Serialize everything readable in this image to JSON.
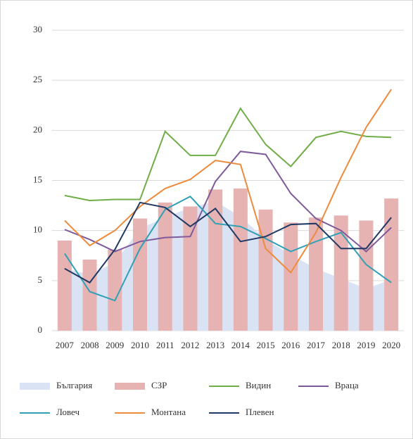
{
  "chart_data": {
    "type": "combo",
    "categories": [
      "2007",
      "2008",
      "2009",
      "2010",
      "2011",
      "2012",
      "2013",
      "2014",
      "2015",
      "2016",
      "2017",
      "2018",
      "2019",
      "2020"
    ],
    "ylim": [
      0,
      30
    ],
    "yticks": [
      0,
      5,
      10,
      15,
      20,
      25,
      30
    ],
    "grid": true,
    "legend": "bottom",
    "series": [
      {
        "name": "България",
        "type": "area",
        "color": "#dae3f3",
        "values": [
          6.2,
          5.6,
          6.8,
          10.2,
          11.3,
          12.3,
          12.9,
          11.4,
          9.1,
          7.6,
          6.2,
          5.2,
          4.2,
          5.1
        ]
      },
      {
        "name": "СЗР",
        "type": "bar",
        "color": "#e6b3b2",
        "values": [
          9.0,
          7.1,
          8.1,
          11.2,
          12.8,
          12.4,
          14.1,
          14.2,
          12.1,
          10.8,
          11.3,
          11.5,
          11.0,
          13.2
        ]
      },
      {
        "name": "Видин",
        "type": "line",
        "color": "#70ad47",
        "values": [
          13.5,
          13.0,
          13.1,
          13.1,
          19.9,
          17.5,
          17.5,
          22.2,
          18.6,
          16.4,
          19.3,
          19.9,
          19.4,
          19.3
        ]
      },
      {
        "name": "Враца",
        "type": "line",
        "color": "#7e5a9b",
        "values": [
          10.1,
          9.1,
          7.9,
          8.9,
          9.3,
          9.4,
          14.9,
          17.9,
          17.6,
          13.7,
          11.2,
          10.0,
          7.9,
          10.3
        ]
      },
      {
        "name": "Ловеч",
        "type": "line",
        "color": "#31a0b5",
        "values": [
          7.7,
          3.9,
          3.0,
          8.2,
          12.1,
          13.4,
          10.7,
          10.4,
          9.2,
          7.9,
          8.9,
          9.8,
          6.6,
          4.8
        ]
      },
      {
        "name": "Монтана",
        "type": "line",
        "color": "#ed8b3d",
        "values": [
          11.0,
          8.5,
          10.0,
          12.4,
          14.2,
          15.1,
          17.0,
          16.6,
          8.2,
          5.8,
          9.8,
          15.3,
          20.3,
          24.1
        ]
      },
      {
        "name": "Плевен",
        "type": "line",
        "color": "#1f3864",
        "values": [
          6.2,
          4.8,
          8.1,
          12.8,
          12.3,
          10.4,
          12.2,
          8.9,
          9.4,
          10.6,
          10.7,
          8.2,
          8.2,
          11.3
        ]
      }
    ]
  }
}
